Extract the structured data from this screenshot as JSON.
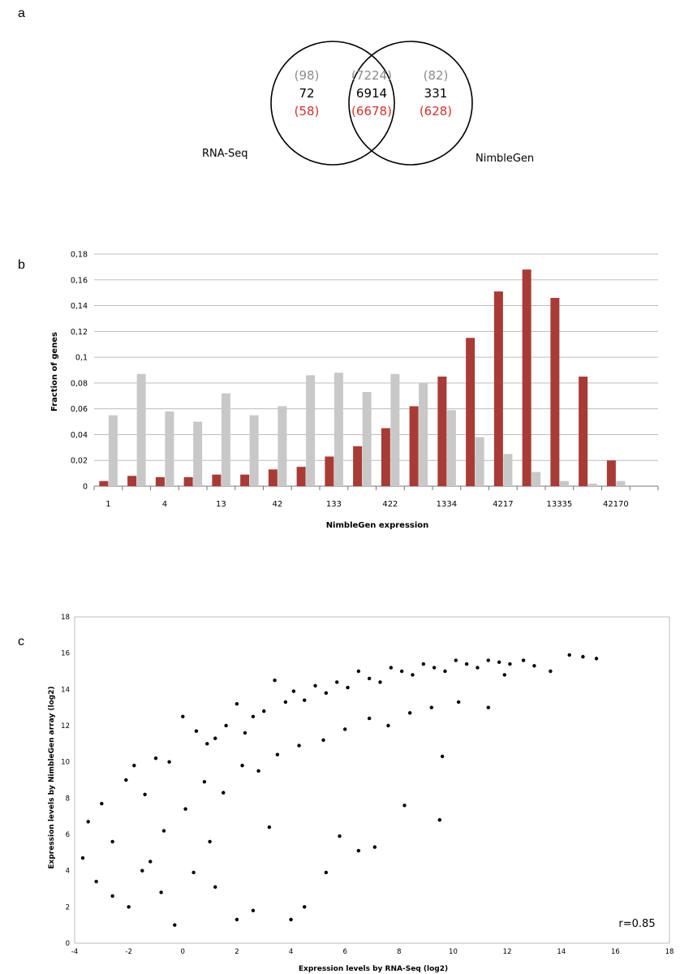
{
  "panels": {
    "a": {
      "letter": "a"
    },
    "b": {
      "letter": "b"
    },
    "c": {
      "letter": "c"
    }
  },
  "colors": {
    "grey_text": "#8c8c8c",
    "red_text": "#d4312b",
    "bar_red": "#a93b36",
    "bar_grey": "#c8c8c8",
    "grid": "#bdbdbd"
  },
  "chart_data": [
    {
      "type": "venn",
      "sets": [
        {
          "name": "RNA-Seq",
          "only": {
            "top": "(98)",
            "middle": "72",
            "bottom": "(58)"
          }
        },
        {
          "name": "NimbleGen",
          "only": {
            "top": "(82)",
            "middle": "331",
            "bottom": "(628)"
          }
        }
      ],
      "intersection": {
        "top": "(7224)",
        "middle": "6914",
        "bottom": "(6678)"
      }
    },
    {
      "type": "bar",
      "xlabel": "NimbleGen expression",
      "ylabel": "Fraction of genes",
      "ylim": [
        0,
        0.18
      ],
      "yticks": [
        "0",
        "0,02",
        "0,04",
        "0,06",
        "0,08",
        "0,1",
        "0,12",
        "0,14",
        "0,16",
        "0,18"
      ],
      "xtick_labels": [
        "1",
        "",
        "4",
        "",
        "13",
        "",
        "42",
        "",
        "133",
        "",
        "422",
        "",
        "1334",
        "",
        "4217",
        "",
        "13335",
        "",
        "42170",
        ""
      ],
      "grid": true,
      "series": [
        {
          "color": "#a93b36",
          "values": [
            0.004,
            0.008,
            0.007,
            0.007,
            0.009,
            0.009,
            0.013,
            0.015,
            0.023,
            0.031,
            0.045,
            0.062,
            0.085,
            0.115,
            0.151,
            0.168,
            0.146,
            0.085,
            0.02,
            0
          ]
        },
        {
          "color": "#c8c8c8",
          "values": [
            0.055,
            0.087,
            0.058,
            0.05,
            0.072,
            0.055,
            0.062,
            0.086,
            0.088,
            0.073,
            0.087,
            0.08,
            0.059,
            0.038,
            0.025,
            0.011,
            0.004,
            0.002,
            0.004,
            0
          ]
        }
      ]
    },
    {
      "type": "scatter",
      "xlabel": "Expression levels by RNA-Seq (log2)",
      "ylabel": "Expression levels by NimbleGen array (log2)",
      "xlim": [
        -4,
        18
      ],
      "ylim": [
        0,
        18
      ],
      "xticks": [
        "-4",
        "-2",
        "0",
        "2",
        "4",
        "6",
        "8",
        "10",
        "12",
        "14",
        "16",
        "18"
      ],
      "yticks": [
        "0",
        "2",
        "4",
        "6",
        "8",
        "10",
        "12",
        "14",
        "16",
        "18"
      ],
      "annotation": "r=0.85",
      "points": [
        [
          -3.5,
          6.7
        ],
        [
          -3.0,
          7.7
        ],
        [
          -2.6,
          5.6
        ],
        [
          -2.1,
          9.0
        ],
        [
          -1.8,
          9.8
        ],
        [
          -1.4,
          8.2
        ],
        [
          -1.0,
          10.2
        ],
        [
          -0.5,
          10.0
        ],
        [
          0.0,
          12.5
        ],
        [
          0.5,
          11.7
        ],
        [
          0.9,
          11.0
        ],
        [
          1.2,
          11.3
        ],
        [
          1.6,
          12.0
        ],
        [
          2.0,
          13.2
        ],
        [
          2.3,
          11.6
        ],
        [
          2.6,
          12.5
        ],
        [
          3.0,
          12.8
        ],
        [
          3.4,
          14.5
        ],
        [
          3.8,
          13.3
        ],
        [
          4.1,
          13.9
        ],
        [
          4.5,
          13.4
        ],
        [
          4.9,
          14.2
        ],
        [
          5.3,
          13.8
        ],
        [
          5.7,
          14.4
        ],
        [
          6.1,
          14.1
        ],
        [
          6.5,
          15.0
        ],
        [
          6.9,
          14.6
        ],
        [
          7.3,
          14.4
        ],
        [
          7.7,
          15.2
        ],
        [
          8.1,
          15.0
        ],
        [
          8.5,
          14.8
        ],
        [
          8.9,
          15.4
        ],
        [
          9.3,
          15.2
        ],
        [
          9.7,
          15.0
        ],
        [
          10.1,
          15.6
        ],
        [
          10.5,
          15.4
        ],
        [
          10.9,
          15.2
        ],
        [
          11.3,
          15.6
        ],
        [
          11.7,
          15.5
        ],
        [
          12.1,
          15.4
        ],
        [
          12.6,
          15.6
        ],
        [
          13.0,
          15.3
        ],
        [
          13.6,
          15.0
        ],
        [
          14.3,
          15.9
        ],
        [
          14.8,
          15.8
        ],
        [
          15.3,
          15.7
        ],
        [
          -1.2,
          4.5
        ],
        [
          -0.7,
          6.2
        ],
        [
          0.1,
          7.4
        ],
        [
          0.8,
          8.9
        ],
        [
          1.5,
          8.3
        ],
        [
          2.2,
          9.8
        ],
        [
          2.8,
          9.5
        ],
        [
          3.5,
          10.4
        ],
        [
          4.3,
          10.9
        ],
        [
          5.2,
          11.2
        ],
        [
          6.0,
          11.8
        ],
        [
          6.9,
          12.4
        ],
        [
          7.6,
          12.0
        ],
        [
          8.4,
          12.7
        ],
        [
          9.2,
          13.0
        ],
        [
          10.2,
          13.3
        ],
        [
          0.4,
          3.9
        ],
        [
          1.2,
          3.1
        ],
        [
          2.0,
          1.3
        ],
        [
          2.6,
          1.8
        ],
        [
          4.0,
          1.3
        ],
        [
          4.5,
          2.0
        ],
        [
          5.3,
          3.9
        ],
        [
          6.5,
          5.1
        ],
        [
          7.1,
          5.3
        ],
        [
          8.2,
          7.6
        ],
        [
          9.5,
          6.8
        ],
        [
          9.6,
          10.3
        ],
        [
          11.3,
          13.0
        ],
        [
          11.9,
          14.8
        ],
        [
          -0.3,
          1.0
        ],
        [
          -2.6,
          2.6
        ],
        [
          -3.2,
          3.4
        ],
        [
          -2.0,
          2.0
        ],
        [
          -1.5,
          4.0
        ],
        [
          -3.7,
          4.7
        ],
        [
          -0.8,
          2.8
        ],
        [
          1.0,
          5.6
        ],
        [
          3.2,
          6.4
        ],
        [
          5.8,
          5.9
        ]
      ]
    }
  ]
}
